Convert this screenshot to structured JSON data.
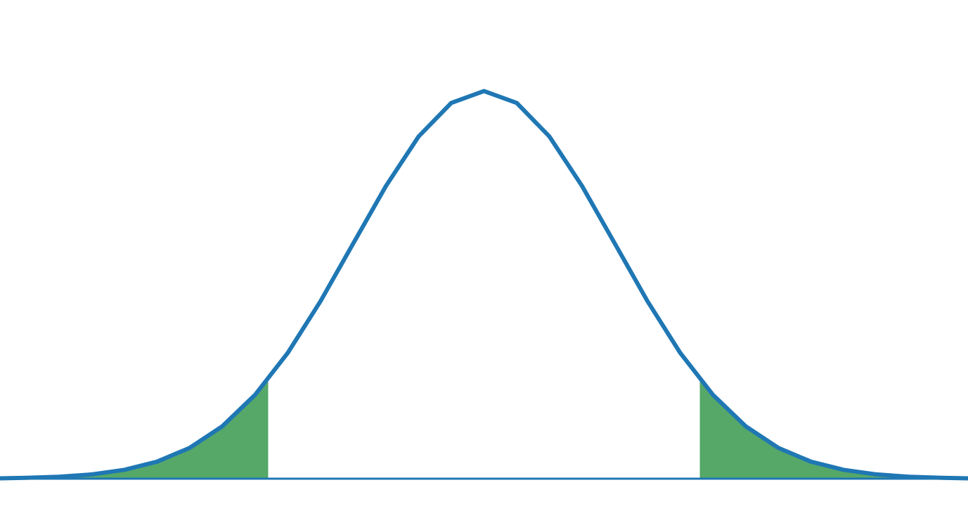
{
  "chart_data": {
    "type": "area",
    "title": "",
    "xlabel": "",
    "ylabel": "",
    "grid": false,
    "legend": "none",
    "distribution": "normal",
    "mean": 0,
    "std": 1,
    "xlim": [
      -3.7,
      3.7
    ],
    "ylim": [
      0,
      0.4
    ],
    "series": [
      {
        "x": [
          -3.7,
          -3.5,
          -3.25,
          -3.0,
          -2.75,
          -2.5,
          -2.25,
          -2.0,
          -1.75,
          -1.5,
          -1.25,
          -1.0,
          -0.75,
          -0.5,
          -0.25,
          0.0,
          0.25,
          0.5,
          0.75,
          1.0,
          1.25,
          1.5,
          1.75,
          2.0,
          2.25,
          2.5,
          2.75,
          3.0,
          3.25,
          3.5,
          3.7
        ],
        "y": [
          0.0004,
          0.0009,
          0.002,
          0.0044,
          0.0091,
          0.0175,
          0.0317,
          0.054,
          0.0863,
          0.1295,
          0.1826,
          0.242,
          0.3011,
          0.3521,
          0.3867,
          0.3989,
          0.3867,
          0.3521,
          0.3011,
          0.242,
          0.1826,
          0.1295,
          0.0863,
          0.054,
          0.0317,
          0.0175,
          0.0091,
          0.0044,
          0.002,
          0.0009,
          0.0004
        ],
        "color": "#1f77b4"
      }
    ],
    "shaded_regions": [
      {
        "from": -3.7,
        "to": -1.65,
        "color": "#55a868"
      },
      {
        "from": 1.65,
        "to": 3.7,
        "color": "#55a868"
      }
    ]
  }
}
